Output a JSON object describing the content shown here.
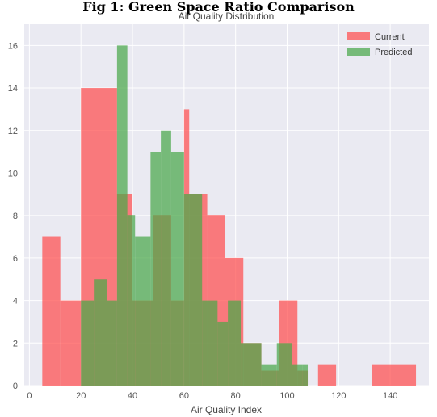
{
  "figure": {
    "title": "Fig 1: Green Space Ratio Comparison"
  },
  "chart_data": {
    "type": "bar",
    "title": "Air Quality Distribution",
    "xlabel": "Air Quality Index",
    "ylabel": "",
    "xlim": [
      -2,
      155
    ],
    "ylim": [
      0,
      17
    ],
    "xticks": [
      0,
      20,
      40,
      60,
      80,
      100,
      120,
      140
    ],
    "yticks": [
      0,
      2,
      4,
      6,
      8,
      10,
      12,
      14,
      16
    ],
    "grid": true,
    "legend_position": "top-right",
    "series": [
      {
        "name": "Current",
        "color": "#ff4d4d",
        "opacity": 0.72,
        "bins": [
          {
            "x0": 5,
            "x1": 12,
            "count": 7
          },
          {
            "x0": 12,
            "x1": 20,
            "count": 4
          },
          {
            "x0": 20,
            "x1": 34,
            "count": 14
          },
          {
            "x0": 34,
            "x1": 40,
            "count": 9
          },
          {
            "x0": 40,
            "x1": 48,
            "count": 4
          },
          {
            "x0": 48,
            "x1": 55,
            "count": 8
          },
          {
            "x0": 55,
            "x1": 60,
            "count": 4
          },
          {
            "x0": 60,
            "x1": 62,
            "count": 13
          },
          {
            "x0": 62,
            "x1": 69,
            "count": 9
          },
          {
            "x0": 69,
            "x1": 76,
            "count": 8
          },
          {
            "x0": 76,
            "x1": 83,
            "count": 6
          },
          {
            "x0": 83,
            "x1": 90,
            "count": 2
          },
          {
            "x0": 90,
            "x1": 97,
            "count": 0.7
          },
          {
            "x0": 97,
            "x1": 104,
            "count": 4
          },
          {
            "x0": 104,
            "x1": 108,
            "count": 0.7
          },
          {
            "x0": 112,
            "x1": 119,
            "count": 1
          },
          {
            "x0": 133,
            "x1": 150,
            "count": 1
          }
        ]
      },
      {
        "name": "Predicted",
        "color": "#49a849",
        "opacity": 0.72,
        "bins": [
          {
            "x0": 20,
            "x1": 25,
            "count": 4
          },
          {
            "x0": 25,
            "x1": 30,
            "count": 5
          },
          {
            "x0": 30,
            "x1": 34,
            "count": 4
          },
          {
            "x0": 34,
            "x1": 38,
            "count": 16
          },
          {
            "x0": 38,
            "x1": 41,
            "count": 8
          },
          {
            "x0": 41,
            "x1": 47,
            "count": 7
          },
          {
            "x0": 47,
            "x1": 51,
            "count": 11
          },
          {
            "x0": 51,
            "x1": 55,
            "count": 12
          },
          {
            "x0": 55,
            "x1": 60,
            "count": 11
          },
          {
            "x0": 60,
            "x1": 67,
            "count": 9
          },
          {
            "x0": 67,
            "x1": 73,
            "count": 4
          },
          {
            "x0": 73,
            "x1": 77,
            "count": 3
          },
          {
            "x0": 77,
            "x1": 82,
            "count": 4
          },
          {
            "x0": 82,
            "x1": 90,
            "count": 2
          },
          {
            "x0": 90,
            "x1": 96,
            "count": 1
          },
          {
            "x0": 96,
            "x1": 102,
            "count": 2
          },
          {
            "x0": 102,
            "x1": 106,
            "count": 1
          },
          {
            "x0": 106,
            "x1": 108,
            "count": 1
          }
        ]
      }
    ]
  }
}
